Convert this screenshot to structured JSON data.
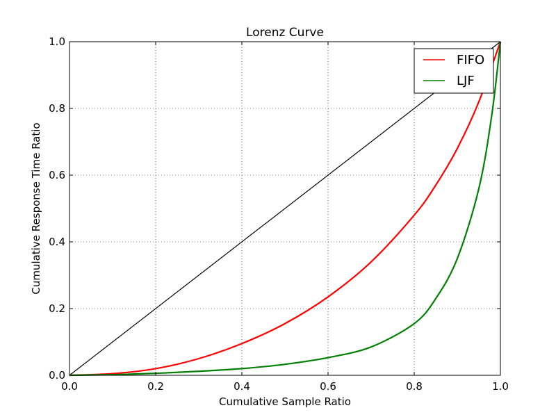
{
  "chart_data": {
    "type": "line",
    "title": "Lorenz Curve",
    "xlabel": "Cumulative Sample Ratio",
    "ylabel": "Cumulative Response Time Ratio",
    "xlim": [
      0.0,
      1.0
    ],
    "ylim": [
      0.0,
      1.0
    ],
    "x_ticks": [
      "0.0",
      "0.2",
      "0.4",
      "0.6",
      "0.8",
      "1.0"
    ],
    "y_ticks": [
      "0.0",
      "0.2",
      "0.4",
      "0.6",
      "0.8",
      "1.0"
    ],
    "grid": true,
    "legend_position": "top-right",
    "reference_line": {
      "color": "#000000",
      "x": [
        0.0,
        1.0
      ],
      "y": [
        0.0,
        1.0
      ]
    },
    "series": [
      {
        "name": "FIFO",
        "color": "#ff0000",
        "x": [
          0.0,
          0.1,
          0.2,
          0.3,
          0.4,
          0.5,
          0.6,
          0.7,
          0.8,
          0.85,
          0.9,
          0.95,
          1.0
        ],
        "y": [
          0.0,
          0.005,
          0.02,
          0.05,
          0.095,
          0.155,
          0.235,
          0.34,
          0.48,
          0.57,
          0.68,
          0.82,
          1.0
        ]
      },
      {
        "name": "LJF",
        "color": "#008000",
        "x": [
          0.0,
          0.1,
          0.2,
          0.3,
          0.4,
          0.5,
          0.6,
          0.7,
          0.8,
          0.85,
          0.9,
          0.95,
          0.98,
          1.0
        ],
        "y": [
          0.0,
          0.002,
          0.006,
          0.012,
          0.02,
          0.033,
          0.053,
          0.085,
          0.155,
          0.23,
          0.35,
          0.56,
          0.78,
          1.0
        ]
      }
    ]
  }
}
